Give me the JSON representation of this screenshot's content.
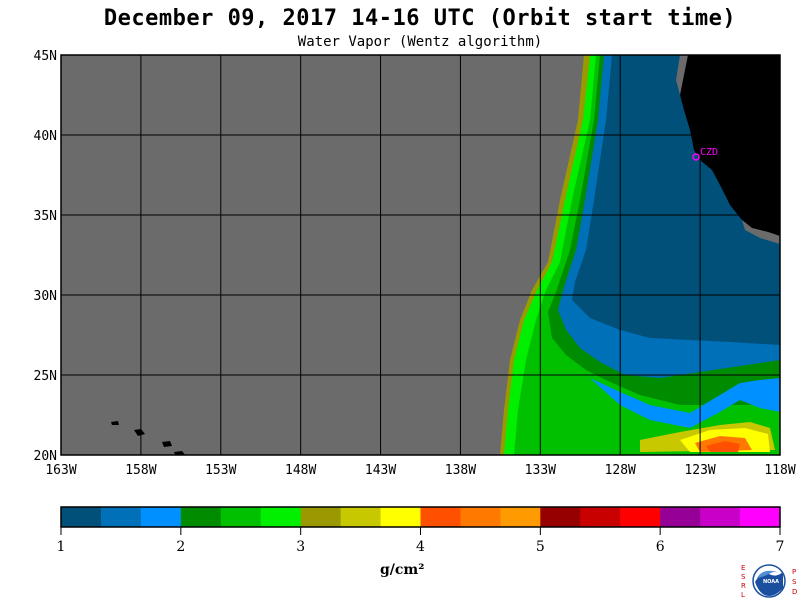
{
  "title": "December 09, 2017  14-16 UTC  (Orbit start time)",
  "subtitle": "Water Vapor (Wentz algorithm)",
  "station_label": "CZD",
  "map": {
    "lat_labels": [
      "45N",
      "40N",
      "35N",
      "30N",
      "25N",
      "20N"
    ],
    "lon_labels": [
      "163W",
      "158W",
      "153W",
      "148W",
      "143W",
      "138W",
      "133W",
      "128W",
      "123W",
      "118W"
    ],
    "lat_range": [
      20,
      45
    ],
    "lon_range": [
      -163,
      -118
    ],
    "no_data_color": "#6b6b6b",
    "land_color": "#000000"
  },
  "colorbar": {
    "ticks": [
      "1",
      "2",
      "3",
      "4",
      "5",
      "6",
      "7"
    ],
    "range": [
      1,
      7
    ],
    "unit": "g/cm²",
    "colors": [
      "#00507a",
      "#0070b8",
      "#0090ff",
      "#008c00",
      "#00c000",
      "#00f000",
      "#9a9a00",
      "#c8c800",
      "#ffff00",
      "#ff5000",
      "#ff7800",
      "#ff9a00",
      "#960000",
      "#c80000",
      "#ff0000",
      "#960096",
      "#c800c8",
      "#ff00ff"
    ]
  },
  "logo": {
    "left_letters": "ESRL",
    "right_letters": "PSD",
    "name": "noaa-logo"
  }
}
